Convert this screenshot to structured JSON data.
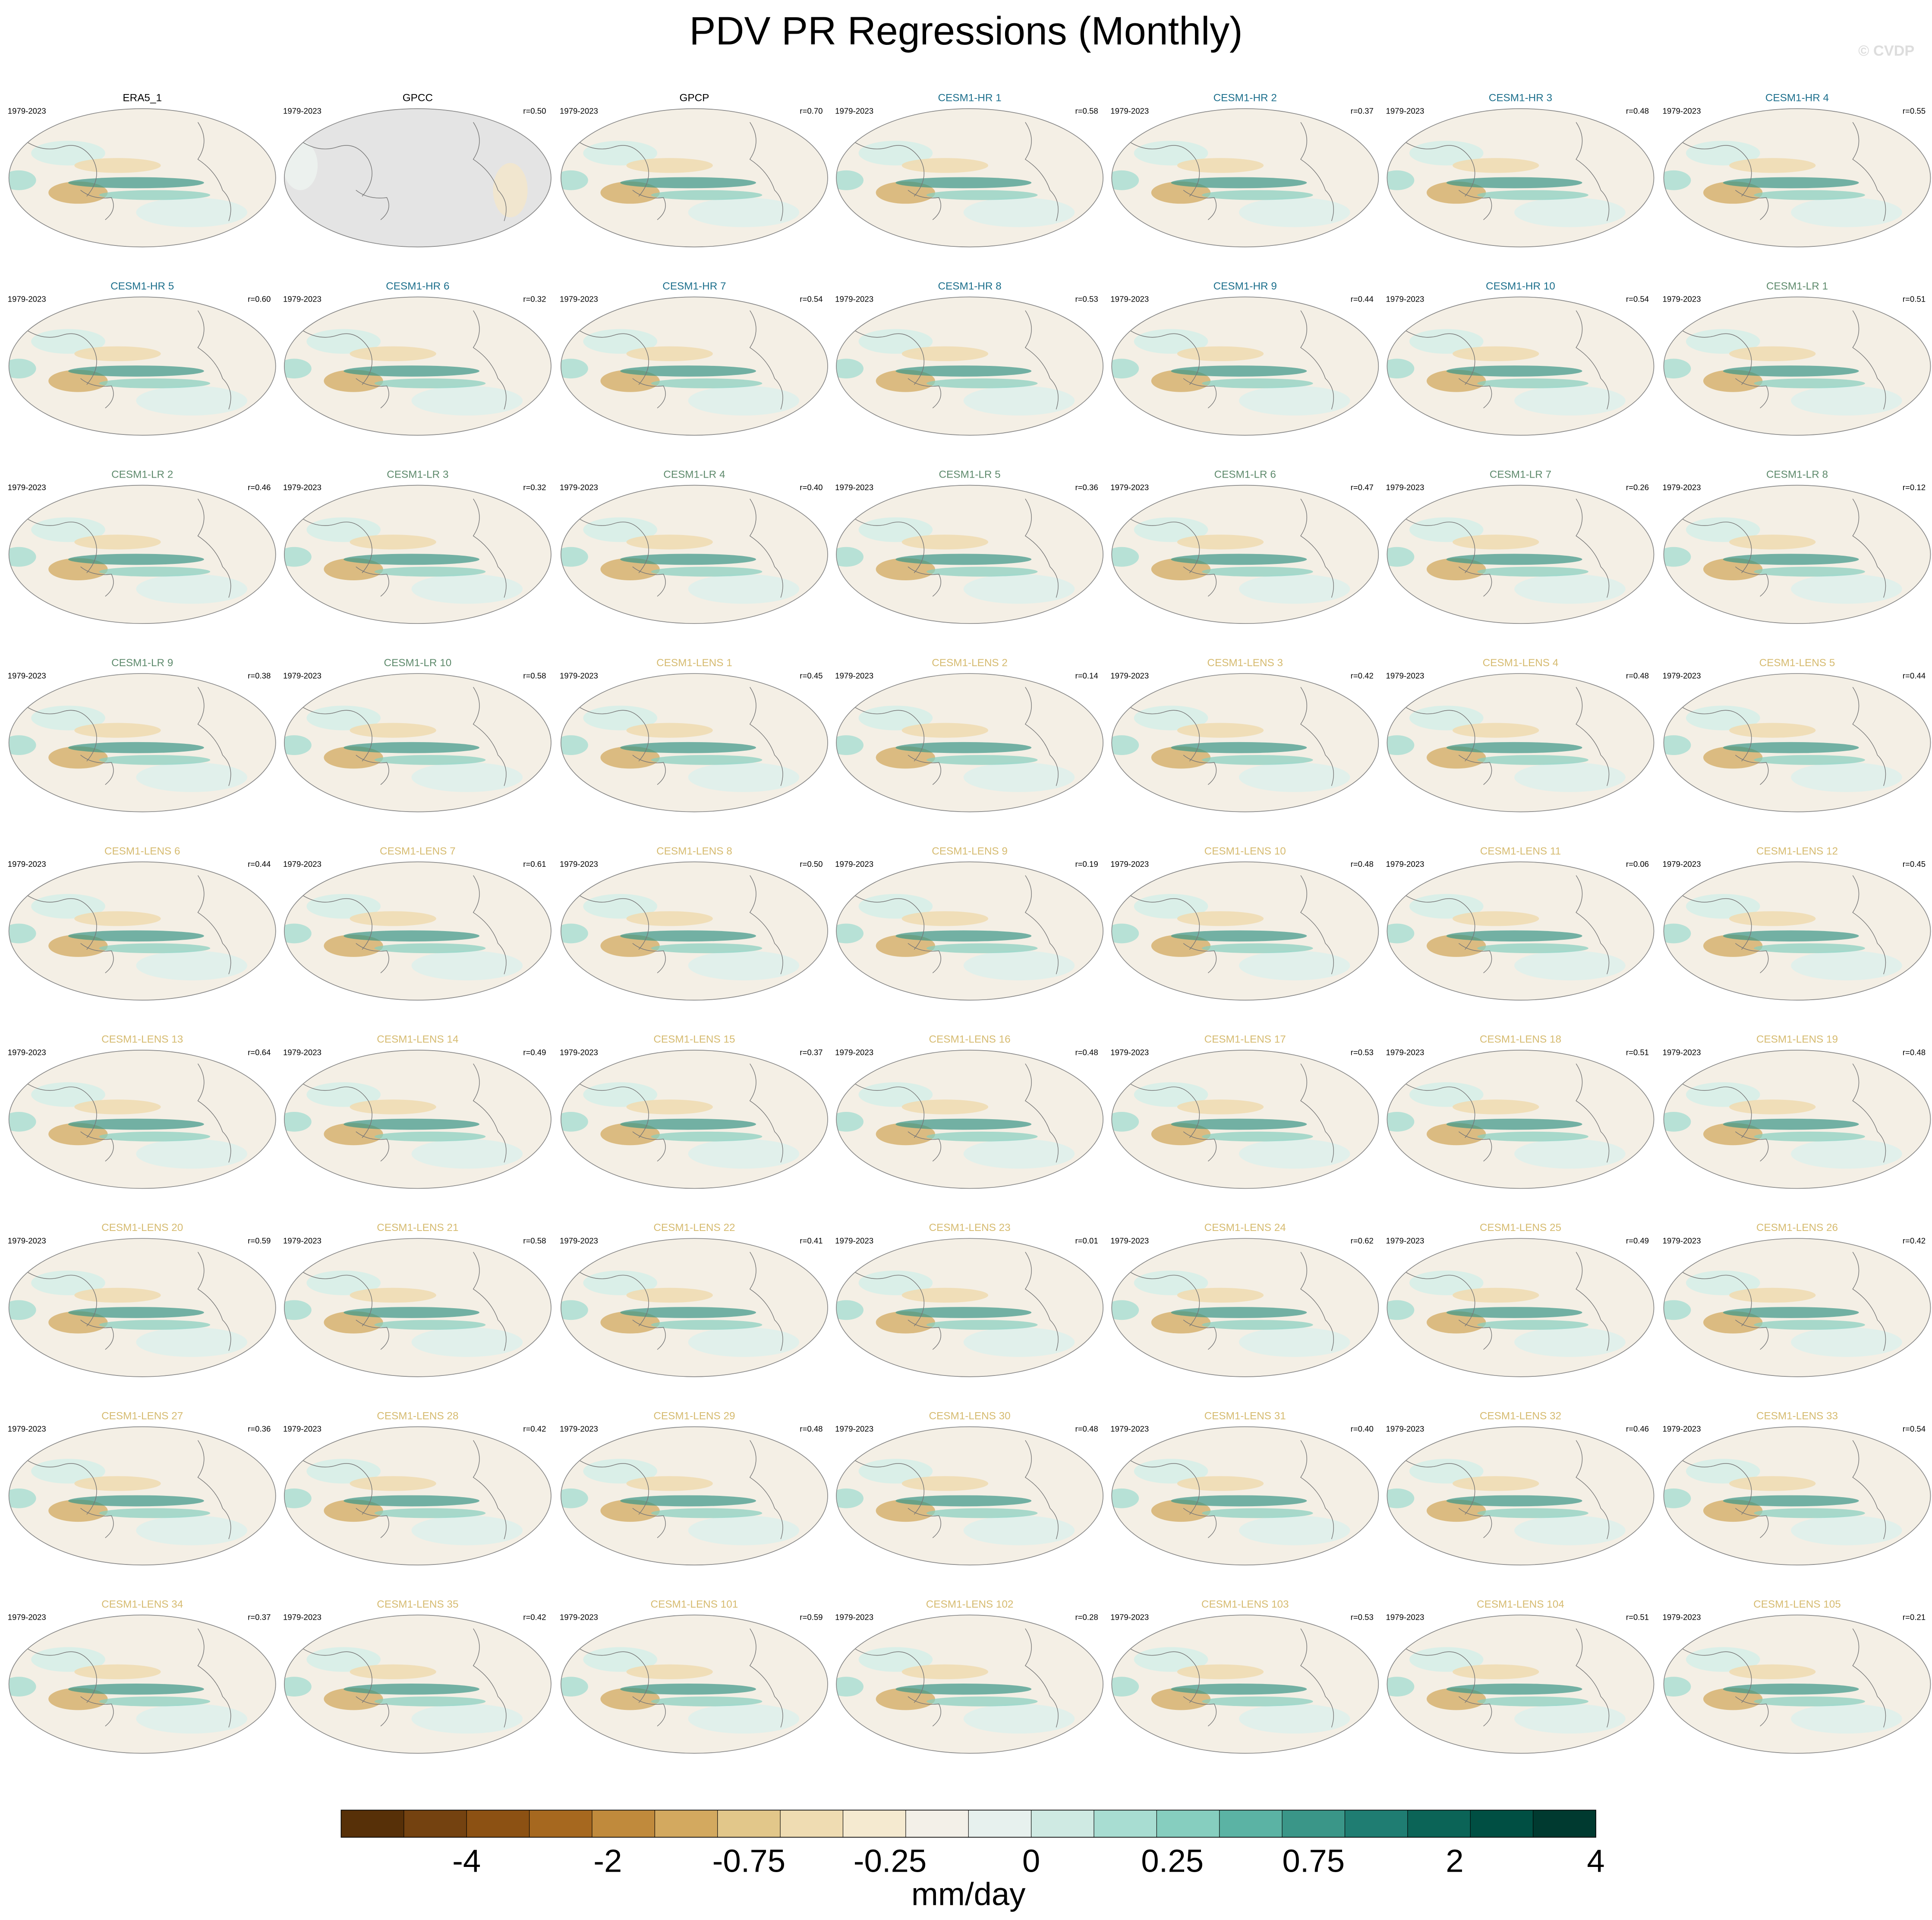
{
  "title": "PDV PR Regressions (Monthly)",
  "watermark": "© CVDP",
  "panels": [
    {
      "title": "ERA5_1",
      "period": "1979-2023",
      "color": "#000000"
    },
    {
      "title": "GPCC",
      "period": "1979-2023",
      "r": "r=0.50",
      "color": "#000000",
      "ocean_masked": true
    },
    {
      "title": "GPCP",
      "period": "1979-2023",
      "r": "r=0.70",
      "color": "#000000"
    },
    {
      "title": "CESM1-HR 1",
      "period": "1979-2023",
      "r": "r=0.58",
      "color": "#1c6f8c"
    },
    {
      "title": "CESM1-HR 2",
      "period": "1979-2023",
      "r": "r=0.37",
      "color": "#1c6f8c"
    },
    {
      "title": "CESM1-HR 3",
      "period": "1979-2023",
      "r": "r=0.48",
      "color": "#1c6f8c"
    },
    {
      "title": "CESM1-HR 4",
      "period": "1979-2023",
      "r": "r=0.55",
      "color": "#1c6f8c"
    },
    {
      "title": "CESM1-HR 5",
      "period": "1979-2023",
      "r": "r=0.60",
      "color": "#1c6f8c"
    },
    {
      "title": "CESM1-HR 6",
      "period": "1979-2023",
      "r": "r=0.32",
      "color": "#1c6f8c"
    },
    {
      "title": "CESM1-HR 7",
      "period": "1979-2023",
      "r": "r=0.54",
      "color": "#1c6f8c"
    },
    {
      "title": "CESM1-HR 8",
      "period": "1979-2023",
      "r": "r=0.53",
      "color": "#1c6f8c"
    },
    {
      "title": "CESM1-HR 9",
      "period": "1979-2023",
      "r": "r=0.44",
      "color": "#1c6f8c"
    },
    {
      "title": "CESM1-HR 10",
      "period": "1979-2023",
      "r": "r=0.54",
      "color": "#1c6f8c"
    },
    {
      "title": "CESM1-LR 1",
      "period": "1979-2023",
      "r": "r=0.51",
      "color": "#5e8a6c"
    },
    {
      "title": "CESM1-LR 2",
      "period": "1979-2023",
      "r": "r=0.46",
      "color": "#5e8a6c"
    },
    {
      "title": "CESM1-LR 3",
      "period": "1979-2023",
      "r": "r=0.32",
      "color": "#5e8a6c"
    },
    {
      "title": "CESM1-LR 4",
      "period": "1979-2023",
      "r": "r=0.40",
      "color": "#5e8a6c"
    },
    {
      "title": "CESM1-LR 5",
      "period": "1979-2023",
      "r": "r=0.36",
      "color": "#5e8a6c"
    },
    {
      "title": "CESM1-LR 6",
      "period": "1979-2023",
      "r": "r=0.47",
      "color": "#5e8a6c"
    },
    {
      "title": "CESM1-LR 7",
      "period": "1979-2023",
      "r": "r=0.26",
      "color": "#5e8a6c"
    },
    {
      "title": "CESM1-LR 8",
      "period": "1979-2023",
      "r": "r=0.12",
      "color": "#5e8a6c"
    },
    {
      "title": "CESM1-LR 9",
      "period": "1979-2023",
      "r": "r=0.38",
      "color": "#5e8a6c"
    },
    {
      "title": "CESM1-LR 10",
      "period": "1979-2023",
      "r": "r=0.58",
      "color": "#5e8a6c"
    },
    {
      "title": "CESM1-LENS 1",
      "period": "1979-2023",
      "r": "r=0.45",
      "color": "#d6bb70"
    },
    {
      "title": "CESM1-LENS 2",
      "period": "1979-2023",
      "r": "r=0.14",
      "color": "#d6bb70"
    },
    {
      "title": "CESM1-LENS 3",
      "period": "1979-2023",
      "r": "r=0.42",
      "color": "#d6bb70"
    },
    {
      "title": "CESM1-LENS 4",
      "period": "1979-2023",
      "r": "r=0.48",
      "color": "#d6bb70"
    },
    {
      "title": "CESM1-LENS 5",
      "period": "1979-2023",
      "r": "r=0.44",
      "color": "#d6bb70"
    },
    {
      "title": "CESM1-LENS 6",
      "period": "1979-2023",
      "r": "r=0.44",
      "color": "#d6bb70"
    },
    {
      "title": "CESM1-LENS 7",
      "period": "1979-2023",
      "r": "r=0.61",
      "color": "#d6bb70"
    },
    {
      "title": "CESM1-LENS 8",
      "period": "1979-2023",
      "r": "r=0.50",
      "color": "#d6bb70"
    },
    {
      "title": "CESM1-LENS 9",
      "period": "1979-2023",
      "r": "r=0.19",
      "color": "#d6bb70"
    },
    {
      "title": "CESM1-LENS 10",
      "period": "1979-2023",
      "r": "r=0.48",
      "color": "#d6bb70"
    },
    {
      "title": "CESM1-LENS 11",
      "period": "1979-2023",
      "r": "r=0.06",
      "color": "#d6bb70"
    },
    {
      "title": "CESM1-LENS 12",
      "period": "1979-2023",
      "r": "r=0.45",
      "color": "#d6bb70"
    },
    {
      "title": "CESM1-LENS 13",
      "period": "1979-2023",
      "r": "r=0.64",
      "color": "#d6bb70"
    },
    {
      "title": "CESM1-LENS 14",
      "period": "1979-2023",
      "r": "r=0.49",
      "color": "#d6bb70"
    },
    {
      "title": "CESM1-LENS 15",
      "period": "1979-2023",
      "r": "r=0.37",
      "color": "#d6bb70"
    },
    {
      "title": "CESM1-LENS 16",
      "period": "1979-2023",
      "r": "r=0.48",
      "color": "#d6bb70"
    },
    {
      "title": "CESM1-LENS 17",
      "period": "1979-2023",
      "r": "r=0.53",
      "color": "#d6bb70"
    },
    {
      "title": "CESM1-LENS 18",
      "period": "1979-2023",
      "r": "r=0.51",
      "color": "#d6bb70"
    },
    {
      "title": "CESM1-LENS 19",
      "period": "1979-2023",
      "r": "r=0.48",
      "color": "#d6bb70"
    },
    {
      "title": "CESM1-LENS 20",
      "period": "1979-2023",
      "r": "r=0.59",
      "color": "#d6bb70"
    },
    {
      "title": "CESM1-LENS 21",
      "period": "1979-2023",
      "r": "r=0.58",
      "color": "#d6bb70"
    },
    {
      "title": "CESM1-LENS 22",
      "period": "1979-2023",
      "r": "r=0.41",
      "color": "#d6bb70"
    },
    {
      "title": "CESM1-LENS 23",
      "period": "1979-2023",
      "r": "r=0.01",
      "color": "#d6bb70"
    },
    {
      "title": "CESM1-LENS 24",
      "period": "1979-2023",
      "r": "r=0.62",
      "color": "#d6bb70"
    },
    {
      "title": "CESM1-LENS 25",
      "period": "1979-2023",
      "r": "r=0.49",
      "color": "#d6bb70"
    },
    {
      "title": "CESM1-LENS 26",
      "period": "1979-2023",
      "r": "r=0.42",
      "color": "#d6bb70"
    },
    {
      "title": "CESM1-LENS 27",
      "period": "1979-2023",
      "r": "r=0.36",
      "color": "#d6bb70"
    },
    {
      "title": "CESM1-LENS 28",
      "period": "1979-2023",
      "r": "r=0.42",
      "color": "#d6bb70"
    },
    {
      "title": "CESM1-LENS 29",
      "period": "1979-2023",
      "r": "r=0.48",
      "color": "#d6bb70"
    },
    {
      "title": "CESM1-LENS 30",
      "period": "1979-2023",
      "r": "r=0.48",
      "color": "#d6bb70"
    },
    {
      "title": "CESM1-LENS 31",
      "period": "1979-2023",
      "r": "r=0.40",
      "color": "#d6bb70"
    },
    {
      "title": "CESM1-LENS 32",
      "period": "1979-2023",
      "r": "r=0.46",
      "color": "#d6bb70"
    },
    {
      "title": "CESM1-LENS 33",
      "period": "1979-2023",
      "r": "r=0.54",
      "color": "#d6bb70"
    },
    {
      "title": "CESM1-LENS 34",
      "period": "1979-2023",
      "r": "r=0.37",
      "color": "#d6bb70"
    },
    {
      "title": "CESM1-LENS 35",
      "period": "1979-2023",
      "r": "r=0.42",
      "color": "#d6bb70"
    },
    {
      "title": "CESM1-LENS 101",
      "period": "1979-2023",
      "r": "r=0.59",
      "color": "#d6bb70"
    },
    {
      "title": "CESM1-LENS 102",
      "period": "1979-2023",
      "r": "r=0.28",
      "color": "#d6bb70"
    },
    {
      "title": "CESM1-LENS 103",
      "period": "1979-2023",
      "r": "r=0.53",
      "color": "#d6bb70"
    },
    {
      "title": "CESM1-LENS 104",
      "period": "1979-2023",
      "r": "r=0.51",
      "color": "#d6bb70"
    },
    {
      "title": "CESM1-LENS 105",
      "period": "1979-2023",
      "r": "r=0.21",
      "color": "#d6bb70"
    }
  ],
  "colorbar": {
    "colors": [
      "#573008",
      "#744210",
      "#8c5113",
      "#a6681f",
      "#c08a3c",
      "#d3a95f",
      "#e2c78a",
      "#efdcb2",
      "#f5ead0",
      "#f3f0e8",
      "#e7f1ee",
      "#cfeae3",
      "#a8ddd2",
      "#86cebf",
      "#5bb3a4",
      "#3a9688",
      "#1f7d72",
      "#0b6457",
      "#004f43",
      "#003a30"
    ],
    "ticks": [
      -4,
      -2,
      -0.75,
      -0.25,
      0,
      0.25,
      0.75,
      2,
      4
    ],
    "label": "mm/day"
  }
}
